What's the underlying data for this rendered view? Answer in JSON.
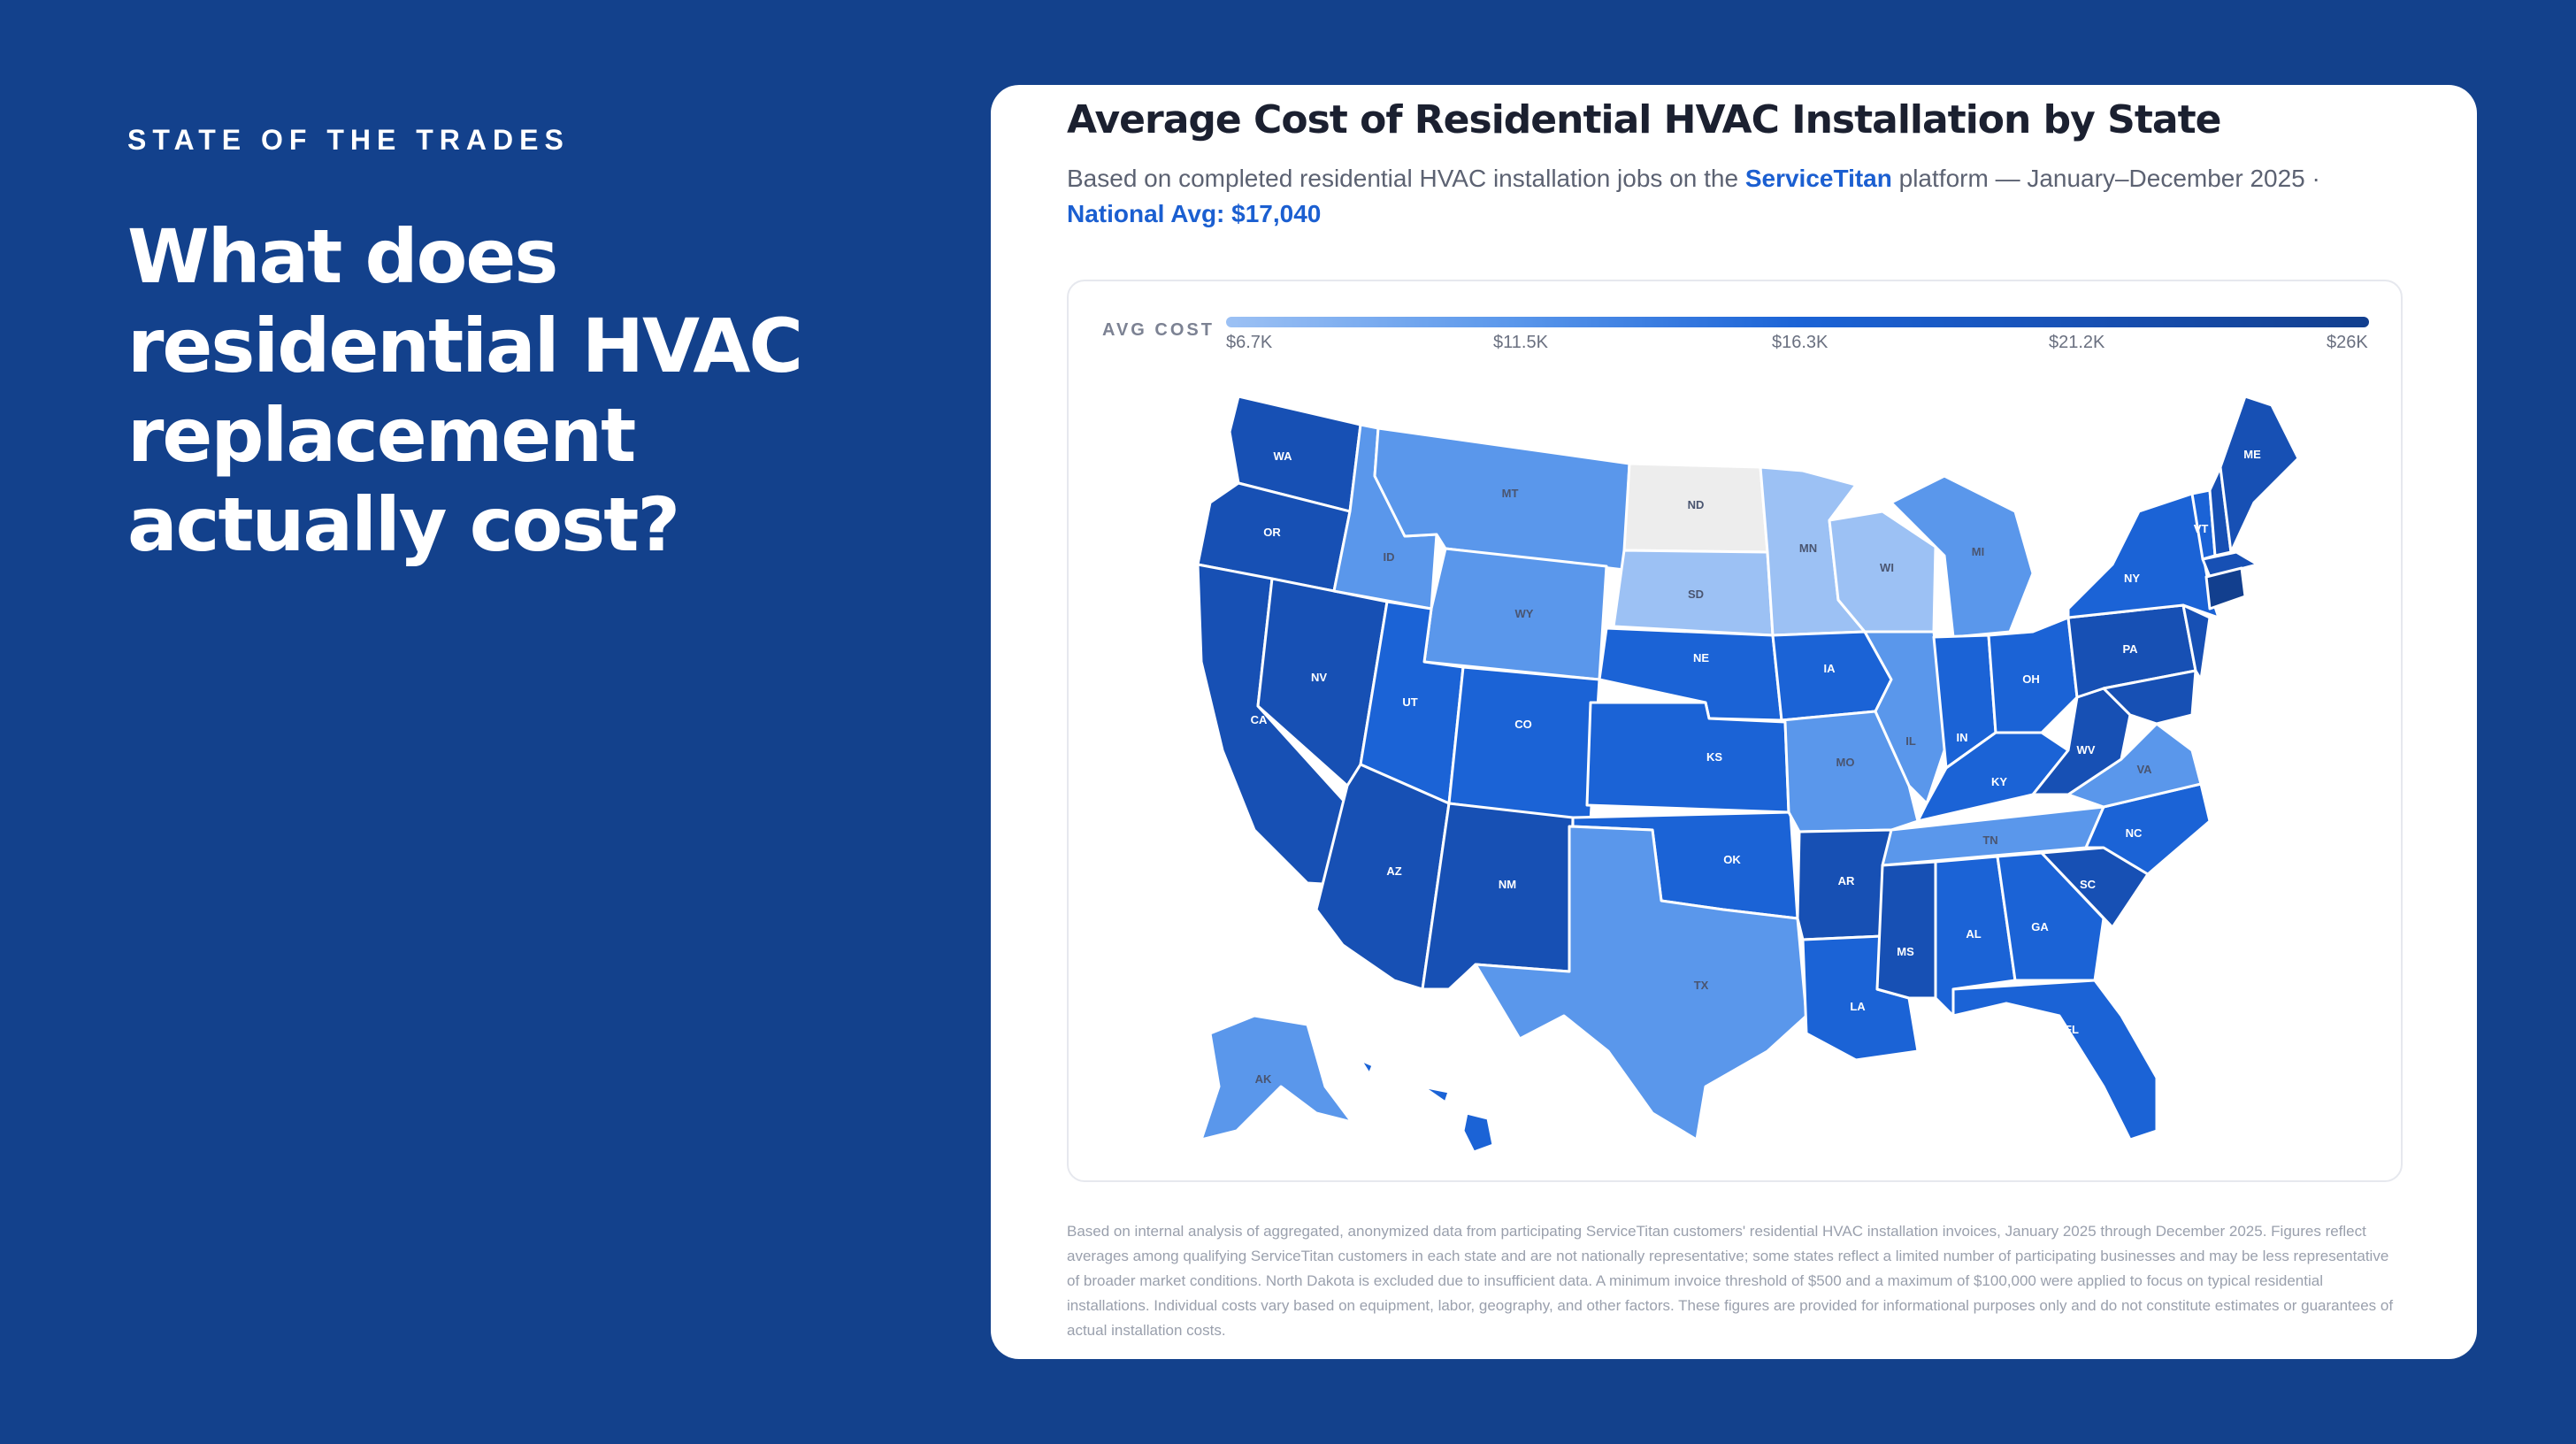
{
  "slide": {
    "eyebrow": "STATE OF THE TRADES",
    "headline": "What does residential HVAC replacement actually cost?"
  },
  "card": {
    "title": "Average Cost of Residential HVAC Installation by State",
    "subtitle_prefix": "Based on completed residential HVAC installation jobs on the",
    "subtitle_brand": "ServiceTitan",
    "subtitle_suffix": "platform — January–December 2025  ·",
    "national_avg": "National Avg: $17,040",
    "legend_label": "AVG COST",
    "legend_ticks": [
      "$6.7K",
      "$11.5K",
      "$16.3K",
      "$21.2K",
      "$26K"
    ],
    "footnote": "Based on internal analysis of aggregated, anonymized data from participating ServiceTitan customers' residential HVAC installation invoices, January 2025 through December 2025. Figures reflect averages among qualifying ServiceTitan customers in each state and are not nationally representative; some states reflect a limited number of participating businesses and may be less representative of broader market conditions. North Dakota is excluded due to insufficient data. A minimum invoice threshold of $500 and a maximum of $100,000 were applied to focus on typical residential installations. Individual costs vary based on equipment, labor, geography, and other factors. These figures are provided for informational purposes only and do not constitute estimates or guarantees of actual installation costs."
  },
  "colors": {
    "background": "#13418c",
    "scale": [
      "#9cc1f4",
      "#5a97eb",
      "#1b63d6",
      "#1750b4",
      "#123f8e"
    ],
    "no_data": "#ededed"
  },
  "map": {
    "states": [
      {
        "abbr": "WA",
        "level": 3
      },
      {
        "abbr": "OR",
        "level": 3
      },
      {
        "abbr": "CA",
        "level": 3
      },
      {
        "abbr": "NV",
        "level": 3
      },
      {
        "abbr": "ID",
        "level": 1
      },
      {
        "abbr": "MT",
        "level": 1
      },
      {
        "abbr": "WY",
        "level": 1
      },
      {
        "abbr": "UT",
        "level": 2
      },
      {
        "abbr": "CO",
        "level": 2
      },
      {
        "abbr": "AZ",
        "level": 3
      },
      {
        "abbr": "NM",
        "level": 3
      },
      {
        "abbr": "ND",
        "level": -1
      },
      {
        "abbr": "SD",
        "level": 0
      },
      {
        "abbr": "NE",
        "level": 2
      },
      {
        "abbr": "KS",
        "level": 2
      },
      {
        "abbr": "OK",
        "level": 2
      },
      {
        "abbr": "TX",
        "level": 1
      },
      {
        "abbr": "MN",
        "level": 0
      },
      {
        "abbr": "IA",
        "level": 2
      },
      {
        "abbr": "MO",
        "level": 1
      },
      {
        "abbr": "AR",
        "level": 3
      },
      {
        "abbr": "LA",
        "level": 2
      },
      {
        "abbr": "WI",
        "level": 0
      },
      {
        "abbr": "IL",
        "level": 1
      },
      {
        "abbr": "MI",
        "level": 1
      },
      {
        "abbr": "IN",
        "level": 2
      },
      {
        "abbr": "OH",
        "level": 2
      },
      {
        "abbr": "KY",
        "level": 2
      },
      {
        "abbr": "TN",
        "level": 1
      },
      {
        "abbr": "MS",
        "level": 3
      },
      {
        "abbr": "AL",
        "level": 2
      },
      {
        "abbr": "GA",
        "level": 2
      },
      {
        "abbr": "FL",
        "level": 2
      },
      {
        "abbr": "SC",
        "level": 3
      },
      {
        "abbr": "NC",
        "level": 2
      },
      {
        "abbr": "VA",
        "level": 1
      },
      {
        "abbr": "WV",
        "level": 3
      },
      {
        "abbr": "PA",
        "level": 3
      },
      {
        "abbr": "NY",
        "level": 2
      },
      {
        "abbr": "VT",
        "level": 2
      },
      {
        "abbr": "NH",
        "level": 3
      },
      {
        "abbr": "ME",
        "level": 3
      },
      {
        "abbr": "MA",
        "level": 3
      },
      {
        "abbr": "CT",
        "level": 4
      },
      {
        "abbr": "NJ",
        "level": 3
      },
      {
        "abbr": "MD",
        "level": 3
      },
      {
        "abbr": "AK",
        "level": 1
      },
      {
        "abbr": "HI",
        "level": 2
      }
    ]
  }
}
